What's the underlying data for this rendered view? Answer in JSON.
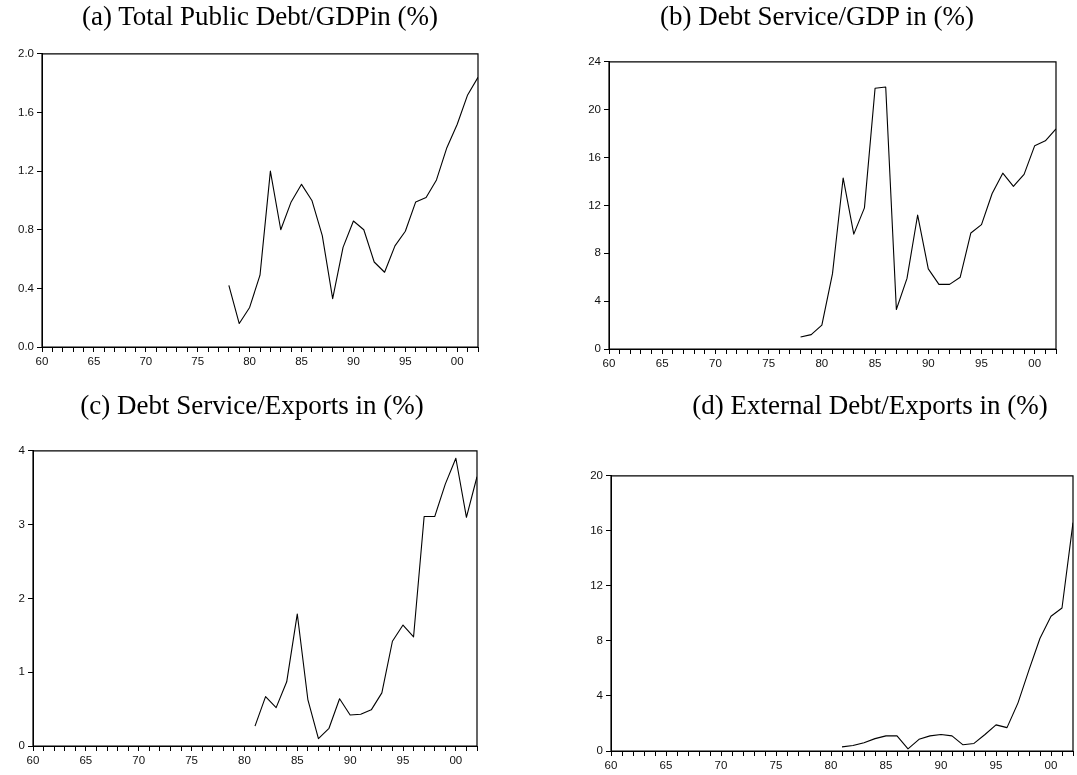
{
  "chart_data": [
    {
      "type": "line",
      "title": "(a) Total Public Debt/GDPin (%)",
      "x": [
        1978,
        1979,
        1980,
        1981,
        1982,
        1983,
        1984,
        1985,
        1986,
        1987,
        1988,
        1989,
        1990,
        1991,
        1992,
        1993,
        1994,
        1995,
        1996,
        1997,
        1998,
        1999,
        2000,
        2001,
        2002
      ],
      "values": [
        0.42,
        0.16,
        0.27,
        0.49,
        1.2,
        0.8,
        0.99,
        1.11,
        1.0,
        0.76,
        0.33,
        0.68,
        0.86,
        0.8,
        0.58,
        0.51,
        0.69,
        0.79,
        0.99,
        1.02,
        1.14,
        1.36,
        1.52,
        1.72,
        1.84
      ],
      "color": "#000000",
      "xlim": [
        1960,
        2002
      ],
      "xticks": [
        {
          "value": 1960,
          "label": "60"
        },
        {
          "value": 1961,
          "label": null
        },
        {
          "value": 1962,
          "label": null
        },
        {
          "value": 1963,
          "label": null
        },
        {
          "value": 1964,
          "label": null
        },
        {
          "value": 1965,
          "label": "65"
        },
        {
          "value": 1966,
          "label": null
        },
        {
          "value": 1967,
          "label": null
        },
        {
          "value": 1968,
          "label": null
        },
        {
          "value": 1969,
          "label": null
        },
        {
          "value": 1970,
          "label": "70"
        },
        {
          "value": 1971,
          "label": null
        },
        {
          "value": 1972,
          "label": null
        },
        {
          "value": 1973,
          "label": null
        },
        {
          "value": 1974,
          "label": null
        },
        {
          "value": 1975,
          "label": "75"
        },
        {
          "value": 1976,
          "label": null
        },
        {
          "value": 1977,
          "label": null
        },
        {
          "value": 1978,
          "label": null
        },
        {
          "value": 1979,
          "label": null
        },
        {
          "value": 1980,
          "label": "80"
        },
        {
          "value": 1981,
          "label": null
        },
        {
          "value": 1982,
          "label": null
        },
        {
          "value": 1983,
          "label": null
        },
        {
          "value": 1984,
          "label": null
        },
        {
          "value": 1985,
          "label": "85"
        },
        {
          "value": 1986,
          "label": null
        },
        {
          "value": 1987,
          "label": null
        },
        {
          "value": 1988,
          "label": null
        },
        {
          "value": 1989,
          "label": null
        },
        {
          "value": 1990,
          "label": "90"
        },
        {
          "value": 1991,
          "label": null
        },
        {
          "value": 1992,
          "label": null
        },
        {
          "value": 1993,
          "label": null
        },
        {
          "value": 1994,
          "label": null
        },
        {
          "value": 1995,
          "label": "95"
        },
        {
          "value": 1996,
          "label": null
        },
        {
          "value": 1997,
          "label": null
        },
        {
          "value": 1998,
          "label": null
        },
        {
          "value": 1999,
          "label": null
        },
        {
          "value": 2000,
          "label": "00"
        },
        {
          "value": 2001,
          "label": null
        },
        {
          "value": 2002,
          "label": null
        }
      ],
      "ylim": [
        0,
        2
      ],
      "yticks": [
        {
          "value": 0,
          "label": "0.0"
        },
        0.4,
        0.8,
        1.2,
        1.6,
        {
          "value": 2,
          "label": "2.0"
        }
      ]
    },
    {
      "type": "line",
      "title": "(b) Debt Service/GDP in (%)",
      "x": [
        1978,
        1979,
        1980,
        1981,
        1982,
        1983,
        1984,
        1985,
        1986,
        1987,
        1988,
        1989,
        1990,
        1991,
        1992,
        1993,
        1994,
        1995,
        1996,
        1997,
        1998,
        1999,
        2000,
        2001,
        2002
      ],
      "values": [
        1.0,
        1.2,
        2.0,
        6.3,
        14.3,
        9.6,
        11.8,
        21.8,
        21.9,
        3.3,
        5.9,
        11.2,
        6.7,
        5.4,
        5.4,
        6.0,
        9.7,
        10.4,
        13.0,
        14.7,
        13.6,
        14.6,
        17.0,
        17.4,
        18.4
      ],
      "color": "#000000",
      "xlim": [
        1960,
        2002
      ],
      "xticks": [
        {
          "value": 1960,
          "label": "60"
        },
        {
          "value": 1961,
          "label": null
        },
        {
          "value": 1962,
          "label": null
        },
        {
          "value": 1963,
          "label": null
        },
        {
          "value": 1964,
          "label": null
        },
        {
          "value": 1965,
          "label": "65"
        },
        {
          "value": 1966,
          "label": null
        },
        {
          "value": 1967,
          "label": null
        },
        {
          "value": 1968,
          "label": null
        },
        {
          "value": 1969,
          "label": null
        },
        {
          "value": 1970,
          "label": "70"
        },
        {
          "value": 1971,
          "label": null
        },
        {
          "value": 1972,
          "label": null
        },
        {
          "value": 1973,
          "label": null
        },
        {
          "value": 1974,
          "label": null
        },
        {
          "value": 1975,
          "label": "75"
        },
        {
          "value": 1976,
          "label": null
        },
        {
          "value": 1977,
          "label": null
        },
        {
          "value": 1978,
          "label": null
        },
        {
          "value": 1979,
          "label": null
        },
        {
          "value": 1980,
          "label": "80"
        },
        {
          "value": 1981,
          "label": null
        },
        {
          "value": 1982,
          "label": null
        },
        {
          "value": 1983,
          "label": null
        },
        {
          "value": 1984,
          "label": null
        },
        {
          "value": 1985,
          "label": "85"
        },
        {
          "value": 1986,
          "label": null
        },
        {
          "value": 1987,
          "label": null
        },
        {
          "value": 1988,
          "label": null
        },
        {
          "value": 1989,
          "label": null
        },
        {
          "value": 1990,
          "label": "90"
        },
        {
          "value": 1991,
          "label": null
        },
        {
          "value": 1992,
          "label": null
        },
        {
          "value": 1993,
          "label": null
        },
        {
          "value": 1994,
          "label": null
        },
        {
          "value": 1995,
          "label": "95"
        },
        {
          "value": 1996,
          "label": null
        },
        {
          "value": 1997,
          "label": null
        },
        {
          "value": 1998,
          "label": null
        },
        {
          "value": 1999,
          "label": null
        },
        {
          "value": 2000,
          "label": "00"
        },
        {
          "value": 2001,
          "label": null
        },
        {
          "value": 2002,
          "label": null
        }
      ],
      "ylim": [
        0,
        24
      ],
      "yticks": [
        0,
        4,
        8,
        12,
        16,
        20,
        24
      ]
    },
    {
      "type": "line",
      "title": "(c) Debt Service/Exports in (%)",
      "x": [
        1981,
        1982,
        1983,
        1984,
        1985,
        1986,
        1987,
        1988,
        1989,
        1990,
        1991,
        1992,
        1993,
        1994,
        1995,
        1996,
        1997,
        1998,
        1999,
        2000,
        2001,
        2002
      ],
      "values": [
        0.27,
        0.67,
        0.52,
        0.87,
        1.79,
        0.63,
        0.1,
        0.24,
        0.64,
        0.42,
        0.43,
        0.49,
        0.72,
        1.42,
        1.64,
        1.48,
        3.11,
        3.11,
        3.55,
        3.9,
        3.1,
        3.65
      ],
      "color": "#000000",
      "xlim": [
        1960,
        2002
      ],
      "xticks": [
        {
          "value": 1960,
          "label": "60"
        },
        {
          "value": 1961,
          "label": null
        },
        {
          "value": 1962,
          "label": null
        },
        {
          "value": 1963,
          "label": null
        },
        {
          "value": 1964,
          "label": null
        },
        {
          "value": 1965,
          "label": "65"
        },
        {
          "value": 1966,
          "label": null
        },
        {
          "value": 1967,
          "label": null
        },
        {
          "value": 1968,
          "label": null
        },
        {
          "value": 1969,
          "label": null
        },
        {
          "value": 1970,
          "label": "70"
        },
        {
          "value": 1971,
          "label": null
        },
        {
          "value": 1972,
          "label": null
        },
        {
          "value": 1973,
          "label": null
        },
        {
          "value": 1974,
          "label": null
        },
        {
          "value": 1975,
          "label": "75"
        },
        {
          "value": 1976,
          "label": null
        },
        {
          "value": 1977,
          "label": null
        },
        {
          "value": 1978,
          "label": null
        },
        {
          "value": 1979,
          "label": null
        },
        {
          "value": 1980,
          "label": "80"
        },
        {
          "value": 1981,
          "label": null
        },
        {
          "value": 1982,
          "label": null
        },
        {
          "value": 1983,
          "label": null
        },
        {
          "value": 1984,
          "label": null
        },
        {
          "value": 1985,
          "label": "85"
        },
        {
          "value": 1986,
          "label": null
        },
        {
          "value": 1987,
          "label": null
        },
        {
          "value": 1988,
          "label": null
        },
        {
          "value": 1989,
          "label": null
        },
        {
          "value": 1990,
          "label": "90"
        },
        {
          "value": 1991,
          "label": null
        },
        {
          "value": 1992,
          "label": null
        },
        {
          "value": 1993,
          "label": null
        },
        {
          "value": 1994,
          "label": null
        },
        {
          "value": 1995,
          "label": "95"
        },
        {
          "value": 1996,
          "label": null
        },
        {
          "value": 1997,
          "label": null
        },
        {
          "value": 1998,
          "label": null
        },
        {
          "value": 1999,
          "label": null
        },
        {
          "value": 2000,
          "label": "00"
        },
        {
          "value": 2001,
          "label": null
        },
        {
          "value": 2002,
          "label": null
        }
      ],
      "ylim": [
        0,
        4
      ],
      "yticks": [
        0,
        1,
        2,
        3,
        4
      ]
    },
    {
      "type": "line",
      "title": "(d) External Debt/Exports in (%)",
      "x": [
        1981,
        1982,
        1983,
        1984,
        1985,
        1986,
        1987,
        1988,
        1989,
        1990,
        1991,
        1992,
        1993,
        1994,
        1995,
        1996,
        1997,
        1998,
        1999,
        2000,
        2001,
        2002
      ],
      "values": [
        0.3,
        0.4,
        0.6,
        0.9,
        1.1,
        1.1,
        0.15,
        0.85,
        1.1,
        1.2,
        1.1,
        0.45,
        0.55,
        1.2,
        1.9,
        1.7,
        3.5,
        5.9,
        8.2,
        9.8,
        10.4,
        16.6
      ],
      "color": "#000000",
      "xlim": [
        1960,
        2002
      ],
      "xticks": [
        {
          "value": 1960,
          "label": "60"
        },
        {
          "value": 1961,
          "label": null
        },
        {
          "value": 1962,
          "label": null
        },
        {
          "value": 1963,
          "label": null
        },
        {
          "value": 1964,
          "label": null
        },
        {
          "value": 1965,
          "label": "65"
        },
        {
          "value": 1966,
          "label": null
        },
        {
          "value": 1967,
          "label": null
        },
        {
          "value": 1968,
          "label": null
        },
        {
          "value": 1969,
          "label": null
        },
        {
          "value": 1970,
          "label": "70"
        },
        {
          "value": 1971,
          "label": null
        },
        {
          "value": 1972,
          "label": null
        },
        {
          "value": 1973,
          "label": null
        },
        {
          "value": 1974,
          "label": null
        },
        {
          "value": 1975,
          "label": "75"
        },
        {
          "value": 1976,
          "label": null
        },
        {
          "value": 1977,
          "label": null
        },
        {
          "value": 1978,
          "label": null
        },
        {
          "value": 1979,
          "label": null
        },
        {
          "value": 1980,
          "label": "80"
        },
        {
          "value": 1981,
          "label": null
        },
        {
          "value": 1982,
          "label": null
        },
        {
          "value": 1983,
          "label": null
        },
        {
          "value": 1984,
          "label": null
        },
        {
          "value": 1985,
          "label": "85"
        },
        {
          "value": 1986,
          "label": null
        },
        {
          "value": 1987,
          "label": null
        },
        {
          "value": 1988,
          "label": null
        },
        {
          "value": 1989,
          "label": null
        },
        {
          "value": 1990,
          "label": "90"
        },
        {
          "value": 1991,
          "label": null
        },
        {
          "value": 1992,
          "label": null
        },
        {
          "value": 1993,
          "label": null
        },
        {
          "value": 1994,
          "label": null
        },
        {
          "value": 1995,
          "label": "95"
        },
        {
          "value": 1996,
          "label": null
        },
        {
          "value": 1997,
          "label": null
        },
        {
          "value": 1998,
          "label": null
        },
        {
          "value": 1999,
          "label": null
        },
        {
          "value": 2000,
          "label": "00"
        },
        {
          "value": 2001,
          "label": null
        },
        {
          "value": 2002,
          "label": null
        }
      ],
      "ylim": [
        0,
        20
      ],
      "yticks": [
        0,
        4,
        8,
        12,
        16,
        20
      ]
    }
  ]
}
